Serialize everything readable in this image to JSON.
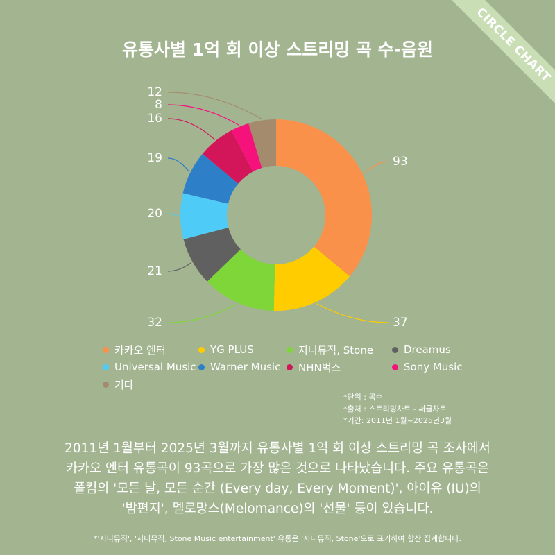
{
  "corner_badge": "CIRCLE CHART",
  "chart_data": {
    "type": "pie",
    "title": "유통사별 1억 회 이상 스트리밍 곡 수-음원",
    "donut": true,
    "legend_position": "bottom",
    "slices": [
      {
        "label": "카카오 엔터",
        "value": 93,
        "color": "#f9914b"
      },
      {
        "label": "YG PLUS",
        "value": 37,
        "color": "#ffcc00"
      },
      {
        "label": "지니뮤직, Stone",
        "value": 32,
        "color": "#7ed638"
      },
      {
        "label": "Dreamus",
        "value": 21,
        "color": "#606060"
      },
      {
        "label": "Universal Music",
        "value": 20,
        "color": "#4ecbf6"
      },
      {
        "label": "Warner Music",
        "value": 19,
        "color": "#2d7fc7"
      },
      {
        "label": "NHN벅스",
        "value": 16,
        "color": "#d3155a"
      },
      {
        "label": "Sony Music",
        "value": 8,
        "color": "#f5137b"
      },
      {
        "label": "기타",
        "value": 12,
        "color": "#a48b6d"
      }
    ]
  },
  "notes": [
    "*단위 : 곡수",
    "*출처 : 스트리밍차트 - 써클차트",
    "*기간: 2011년 1월~2025년3월"
  ],
  "summary": [
    "2011년 1월부터 2025년 3월까지 유통사별 1억 회 이상 스트리밍 곡 조사에서",
    "카카오 엔터 유통곡이 93곡으로 가장 많은 것으로 나타났습니다. 주요 유통곡은",
    "폴킴의 '모든 날, 모든 순간 (Every day, Every Moment)', 아이유 (IU)의",
    "'밤편지', 멜로망스(Melomance)의 '선물' 등이 있습니다."
  ],
  "footnote": "*'지니뮤직', '지니뮤직, Stone Music entertainment' 유통은 '지니뮤직, Stone'으로 표기하여 합산 집계합니다."
}
